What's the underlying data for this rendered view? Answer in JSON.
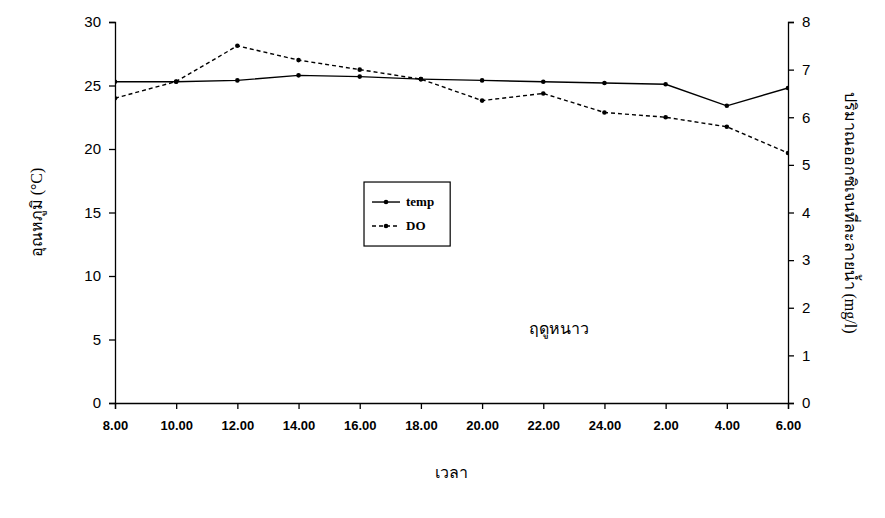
{
  "chart_data": {
    "type": "line",
    "xlabel": "เวลา",
    "ylabel": "อุณหภูมิ (°C)",
    "y2label": "ปริมาณออกซิเจนที่ละลายน้ำ (mg/l)",
    "annotation": "ฤดูหนาว",
    "categories": [
      "8.00",
      "10.00",
      "12.00",
      "14.00",
      "16.00",
      "18.00",
      "20.00",
      "22.00",
      "24.00",
      "2.00",
      "4.00",
      "6.00"
    ],
    "ylim": [
      0,
      30
    ],
    "yticks": [
      0,
      5,
      10,
      15,
      20,
      25,
      30
    ],
    "y2lim": [
      0,
      8
    ],
    "y2ticks": [
      0,
      1,
      2,
      3,
      4,
      5,
      6,
      7,
      8
    ],
    "legend": "center",
    "grid": false,
    "series": [
      {
        "name": "temp",
        "color": "#000000",
        "marker": "circle",
        "line_style": "solid",
        "values": [
          25.3,
          25.3,
          25.4,
          25.8,
          25.7,
          25.5,
          25.4,
          25.3,
          25.2,
          25.1,
          23.4,
          24.8
        ]
      },
      {
        "name": "DO",
        "color": "#000000",
        "marker": "circle",
        "line_style": "dashed",
        "axis": "y2",
        "values": [
          6.4,
          6.75,
          7.5,
          7.2,
          7.0,
          6.8,
          6.35,
          6.5,
          6.1,
          6.0,
          5.8,
          5.25
        ]
      }
    ]
  }
}
